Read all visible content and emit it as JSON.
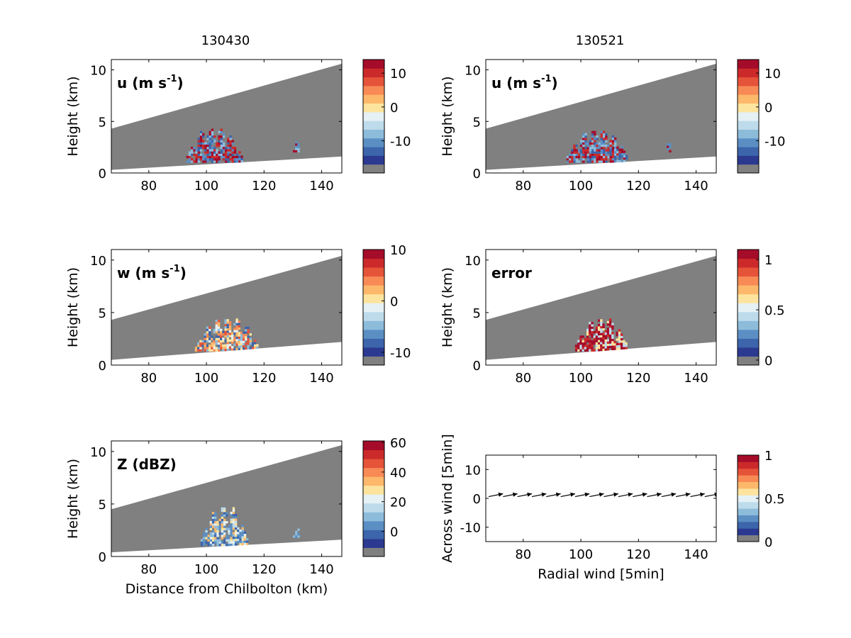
{
  "column_titles": [
    "130430",
    "130521"
  ],
  "colormap": [
    "#808080",
    "#2b3990",
    "#3c65ab",
    "#5b8fc4",
    "#8dbcdb",
    "#bedbeb",
    "#e5f1f5",
    "#fde49e",
    "#fdb86b",
    "#f88a55",
    "#e55339",
    "#cc2a2a",
    "#a50c2a"
  ],
  "colors": {
    "beam": "#808080",
    "axes": "#000000",
    "background": "#ffffff",
    "arrow": "#000000"
  },
  "chart_data": [
    {
      "type": "heatmap",
      "panel": "u-130430",
      "label_main": "u (m s",
      "label_sup": "-1",
      "label_end": ")",
      "xlabel": "",
      "ylabel": "Height (km)",
      "xlim": [
        67,
        147
      ],
      "ylim": [
        0,
        11
      ],
      "xticks": [
        "80",
        "100",
        "120",
        "140"
      ],
      "yticks": [
        "0",
        "5",
        "10"
      ],
      "beam": {
        "top_km": [
          4.3,
          10.6
        ],
        "bottom_km": [
          0.3,
          1.6
        ]
      },
      "colorbar": {
        "range": [
          -19.5,
          14
        ],
        "ticks": [
          {
            "value": 10,
            "label": "10"
          },
          {
            "value": 0,
            "label": "0"
          },
          {
            "value": -10,
            "label": "-10"
          }
        ]
      },
      "echoes": [
        {
          "x": [
            93,
            112
          ],
          "y": [
            1.0,
            4.2
          ],
          "colors": [
            2,
            3,
            4,
            12,
            11
          ],
          "seed": 11
        },
        {
          "x": [
            130,
            132
          ],
          "y": [
            2.0,
            3.0
          ],
          "colors": [
            12,
            3,
            4
          ],
          "seed": 12
        }
      ]
    },
    {
      "type": "heatmap",
      "panel": "u-130521",
      "label_main": "u (m s",
      "label_sup": "-1",
      "label_end": ")",
      "xlabel": "",
      "ylabel": "Height (km)",
      "xlim": [
        67,
        147
      ],
      "ylim": [
        0,
        11
      ],
      "xticks": [
        "80",
        "100",
        "120",
        "140"
      ],
      "yticks": [
        "0",
        "5",
        "10"
      ],
      "beam": {
        "top_km": [
          4.3,
          10.6
        ],
        "bottom_km": [
          0.3,
          1.6
        ]
      },
      "colorbar": {
        "range": [
          -19.5,
          14
        ],
        "ticks": [
          {
            "value": 10,
            "label": "10"
          },
          {
            "value": 0,
            "label": "0"
          },
          {
            "value": -10,
            "label": "-10"
          }
        ]
      },
      "echoes": [
        {
          "x": [
            95,
            116
          ],
          "y": [
            1.0,
            4.0
          ],
          "colors": [
            2,
            3,
            4,
            12,
            11
          ],
          "seed": 21
        },
        {
          "x": [
            129,
            131
          ],
          "y": [
            2.0,
            3.0
          ],
          "colors": [
            12,
            3
          ],
          "seed": 22
        }
      ]
    },
    {
      "type": "heatmap",
      "panel": "w-130430",
      "label_main": "w (m s",
      "label_sup": "-1",
      "label_end": ")",
      "xlabel": "",
      "ylabel": "Height (km)",
      "xlim": [
        67,
        147
      ],
      "ylim": [
        0,
        11
      ],
      "xticks": [
        "80",
        "100",
        "120",
        "140"
      ],
      "yticks": [
        "0",
        "5",
        "10"
      ],
      "beam": {
        "top_km": [
          4.3,
          10.4
        ],
        "bottom_km": [
          0.5,
          2.2
        ]
      },
      "colorbar": {
        "range": [
          -12.5,
          10
        ],
        "ticks": [
          {
            "value": 10,
            "label": "10"
          },
          {
            "value": 0,
            "label": "0"
          },
          {
            "value": -10,
            "label": "-10"
          }
        ]
      },
      "echoes": [
        {
          "x": [
            96,
            118
          ],
          "y": [
            1.3,
            4.3
          ],
          "colors": [
            7,
            8,
            9,
            10,
            6,
            4,
            2
          ],
          "seed": 31
        }
      ]
    },
    {
      "type": "heatmap",
      "panel": "error-130521",
      "label_main": "error",
      "label_sup": "",
      "label_end": "",
      "xlabel": "",
      "ylabel": "Height (km)",
      "xlim": [
        67,
        147
      ],
      "ylim": [
        0,
        11
      ],
      "xticks": [
        "80",
        "100",
        "120",
        "140"
      ],
      "yticks": [
        "0",
        "5",
        "10"
      ],
      "beam": {
        "top_km": [
          4.3,
          10.4
        ],
        "bottom_km": [
          0.5,
          2.2
        ]
      },
      "colorbar": {
        "range": [
          -0.05,
          1.1
        ],
        "ticks": [
          {
            "value": 1,
            "label": "1"
          },
          {
            "value": 0.5,
            "label": "0.5"
          },
          {
            "value": 0,
            "label": "0"
          }
        ]
      },
      "echoes": [
        {
          "x": [
            98,
            116
          ],
          "y": [
            1.3,
            4.3
          ],
          "colors": [
            12,
            12,
            12,
            11,
            5,
            7
          ],
          "seed": 41
        }
      ]
    },
    {
      "type": "heatmap",
      "panel": "Z-130430",
      "label_main": "Z (dBZ)",
      "label_sup": "",
      "label_end": "",
      "xlabel": "Distance from Chilbolton (km)",
      "ylabel": "Height (km)",
      "xlim": [
        67,
        147
      ],
      "ylim": [
        0,
        11
      ],
      "xticks": [
        "80",
        "100",
        "120",
        "140"
      ],
      "yticks": [
        "0",
        "5",
        "10"
      ],
      "beam": {
        "top_km": [
          4.5,
          10.6
        ],
        "bottom_km": [
          0.4,
          1.6
        ]
      },
      "colorbar": {
        "range": [
          -17,
          61
        ],
        "ticks": [
          {
            "value": 60,
            "label": "60"
          },
          {
            "value": 40,
            "label": "40"
          },
          {
            "value": 20,
            "label": "20"
          },
          {
            "value": 0,
            "label": "0"
          }
        ]
      },
      "echoes": [
        {
          "x": [
            98,
            114
          ],
          "y": [
            1.0,
            4.5
          ],
          "colors": [
            2,
            3,
            4,
            5,
            6,
            7,
            8,
            3
          ],
          "seed": 51
        },
        {
          "x": [
            130,
            132
          ],
          "y": [
            1.8,
            2.8
          ],
          "colors": [
            3,
            4
          ],
          "seed": 52
        }
      ]
    },
    {
      "type": "scatter",
      "panel": "wind-arrows",
      "xlabel": "Radial wind [5min]",
      "ylabel": "Across wind [5min]",
      "xlim": [
        67,
        147
      ],
      "ylim": [
        -15,
        15
      ],
      "xticks": [
        "80",
        "100",
        "120",
        "140"
      ],
      "yticks": [
        "-10",
        "0",
        "10"
      ],
      "colorbar": {
        "range": [
          0,
          1
        ],
        "ticks": [
          {
            "value": 1,
            "label": "1"
          },
          {
            "value": 0.5,
            "label": "0.5"
          },
          {
            "value": 0,
            "label": "0"
          }
        ]
      },
      "arrows": [
        {
          "x": 68,
          "y": 0.6,
          "u": 5,
          "v": 1.0
        },
        {
          "x": 73,
          "y": 0.6,
          "u": 5,
          "v": 1.0
        },
        {
          "x": 78,
          "y": 0.6,
          "u": 5,
          "v": 1.0
        },
        {
          "x": 83,
          "y": 0.6,
          "u": 5,
          "v": 1.0
        },
        {
          "x": 88,
          "y": 0.6,
          "u": 5,
          "v": 1.0
        },
        {
          "x": 93,
          "y": 0.6,
          "u": 5,
          "v": 1.0
        },
        {
          "x": 98,
          "y": 0.6,
          "u": 5,
          "v": 1.0
        },
        {
          "x": 103,
          "y": 0.6,
          "u": 5,
          "v": 1.0
        },
        {
          "x": 108,
          "y": 0.6,
          "u": 5,
          "v": 1.0
        },
        {
          "x": 113,
          "y": 0.6,
          "u": 5,
          "v": 1.0
        },
        {
          "x": 118,
          "y": 0.6,
          "u": 5,
          "v": 1.0
        },
        {
          "x": 123,
          "y": 0.6,
          "u": 5,
          "v": 1.0
        },
        {
          "x": 128,
          "y": 0.6,
          "u": 5,
          "v": 1.0
        },
        {
          "x": 133,
          "y": 0.6,
          "u": 5,
          "v": 1.0
        },
        {
          "x": 138,
          "y": 0.6,
          "u": 5,
          "v": 1.0
        },
        {
          "x": 143,
          "y": 0.6,
          "u": 5,
          "v": 1.0
        }
      ]
    }
  ]
}
